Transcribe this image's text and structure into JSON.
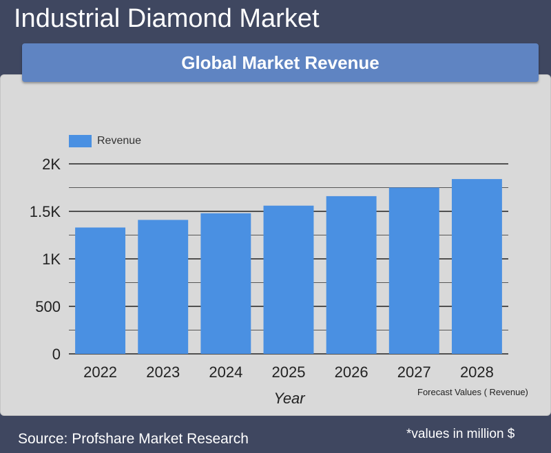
{
  "page": {
    "title": "Industrial Diamond Market",
    "subtitle": "Global Market Revenue",
    "forecast_note": "Forecast Values ( Revenue)",
    "source": "Source: Profshare Market Research",
    "units_note": "*values in million $"
  },
  "colors": {
    "background": "#3f4760",
    "panel": "#d9d9d9",
    "header_bar": "#5f84c2",
    "bar": "#4a90e2"
  },
  "chart_data": {
    "type": "bar",
    "categories": [
      "2022",
      "2023",
      "2024",
      "2025",
      "2026",
      "2027",
      "2028"
    ],
    "series": [
      {
        "name": "Revenue",
        "values": [
          1330,
          1410,
          1480,
          1560,
          1660,
          1750,
          1840
        ]
      }
    ],
    "xlabel": "Year",
    "ylabel": "",
    "ylim": [
      0,
      2000
    ],
    "yticks": [
      0,
      500,
      1000,
      1500,
      2000
    ],
    "ytick_labels": [
      "0",
      "500",
      "1K",
      "1.5K",
      "2K"
    ],
    "grid": true,
    "legend_position": "top-left"
  }
}
